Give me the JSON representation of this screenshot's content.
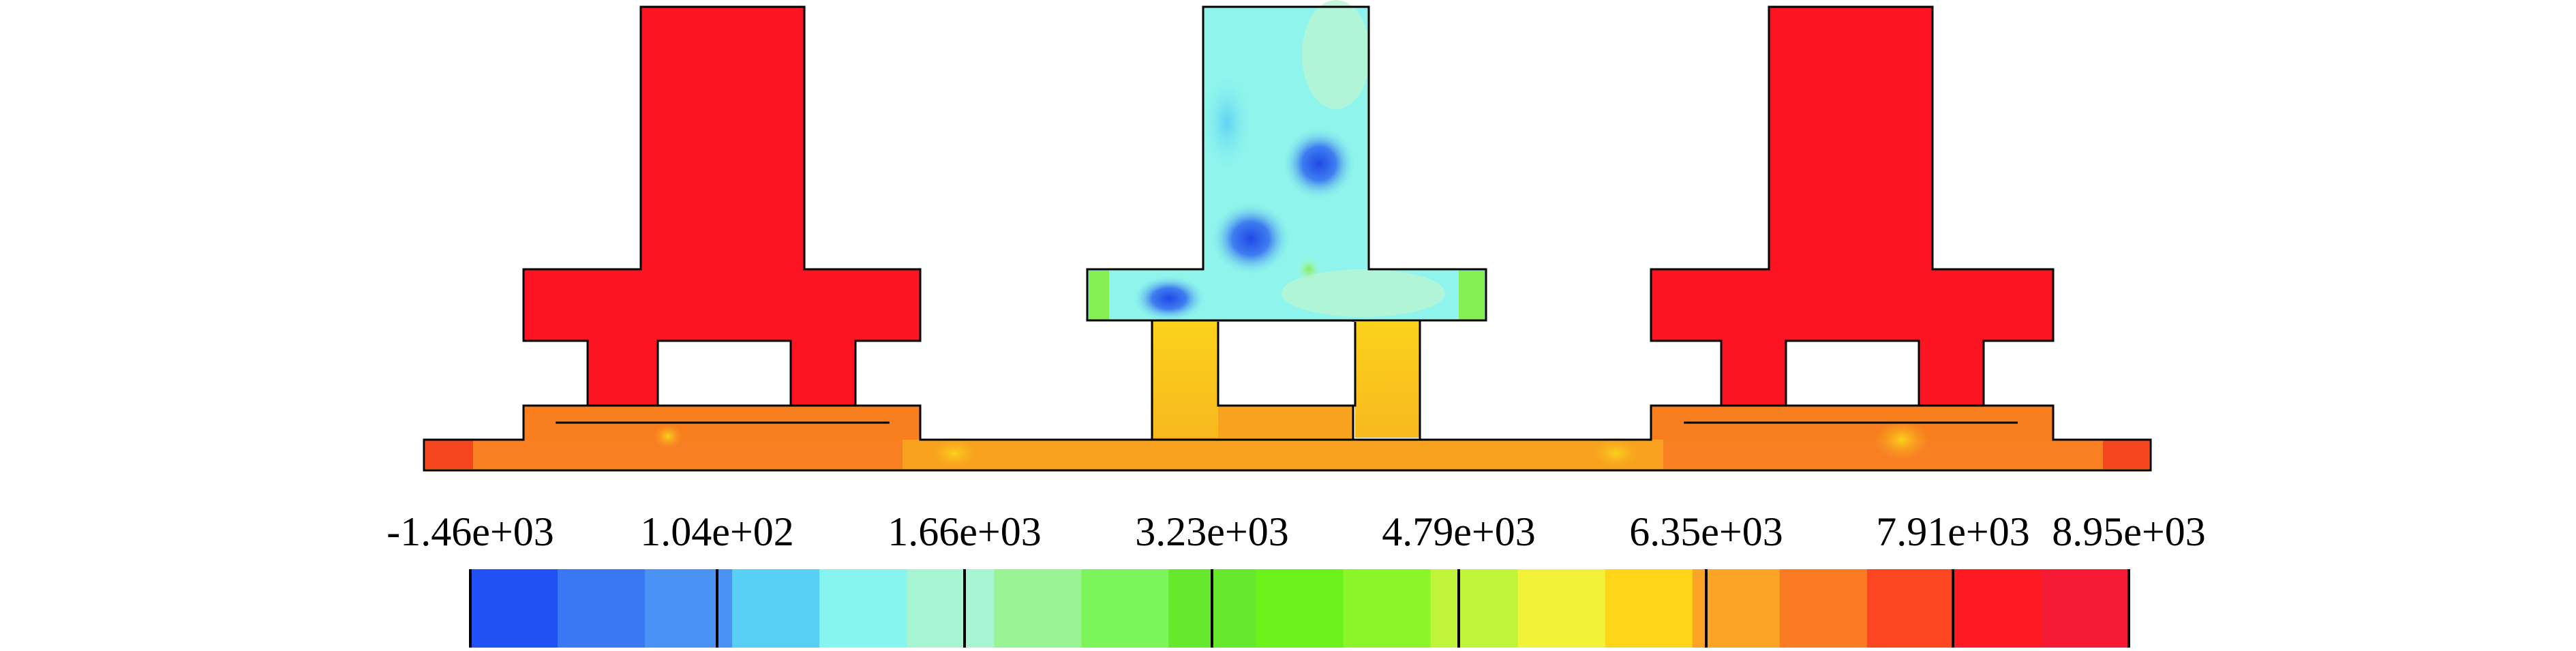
{
  "colorbar": {
    "tick_labels": [
      "-1.46e+03",
      "1.04e+02",
      "1.66e+03",
      "3.23e+03",
      "4.79e+03",
      "6.35e+03",
      "7.91e+03",
      "8.95e+03"
    ],
    "colors": [
      "#2150f5",
      "#3a77f2",
      "#4a93f5",
      "#58cff4",
      "#86f5f0",
      "#a7f5d3",
      "#9bf493",
      "#7cf55a",
      "#66e82c",
      "#6cf21a",
      "#8cf52a",
      "#bff438",
      "#f2f23a",
      "#ffd51a",
      "#fca425",
      "#fb7b24",
      "#fb4621",
      "#fd1a23",
      "#f71a36"
    ]
  },
  "legend_colors": {
    "red": "#fc1423",
    "orange": "#f8a21f",
    "yellow": "#fbd21c",
    "cyan": "#8ff5ec",
    "blue": "#3f7ef0",
    "green": "#84ee52"
  }
}
